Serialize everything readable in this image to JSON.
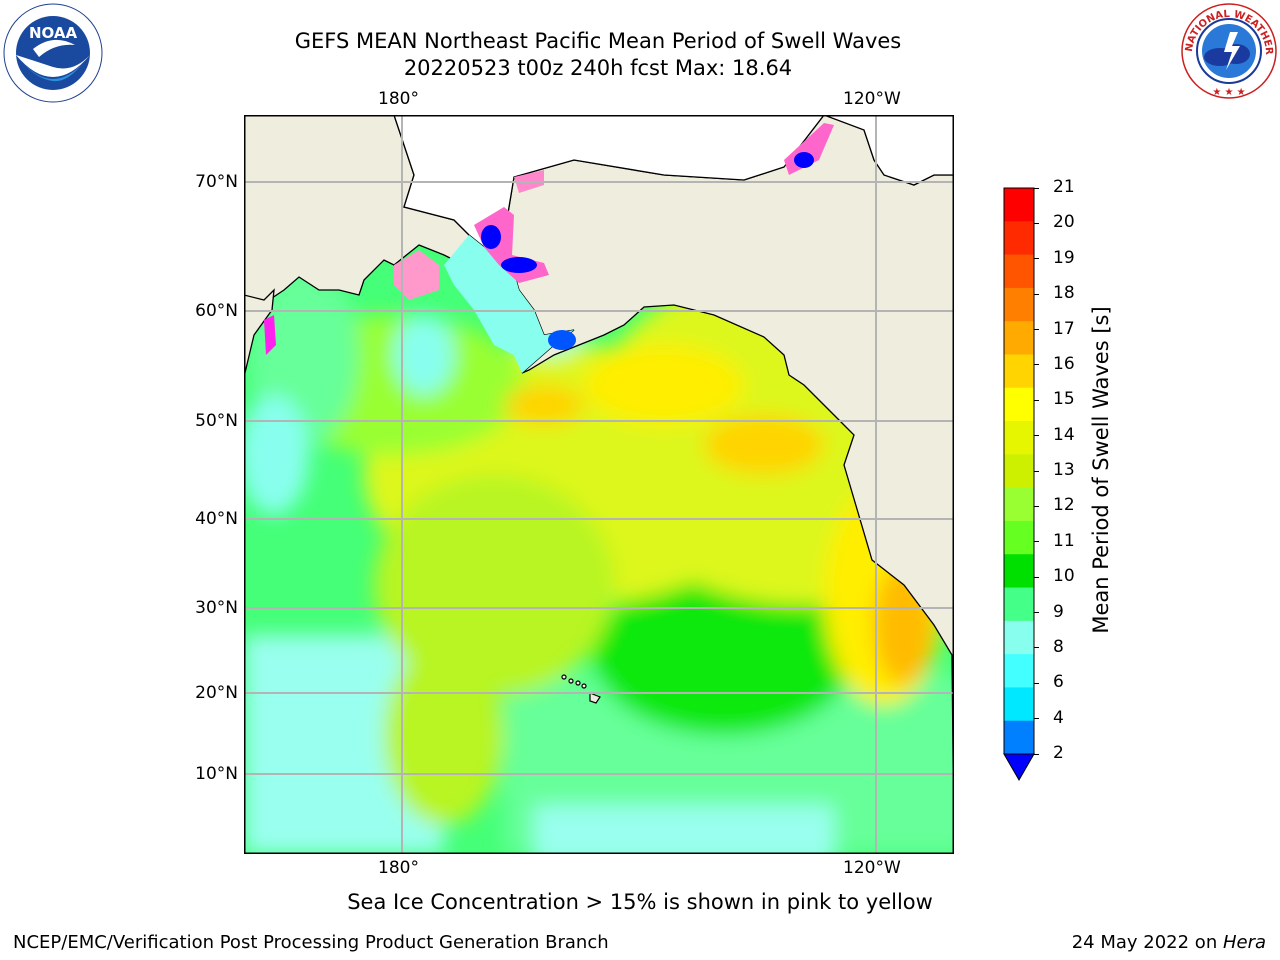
{
  "header": {
    "title_line1": "GEFS MEAN Northeast Pacific Mean Period of Swell Waves",
    "title_line2": "20220523 t00z 240h fcst   Max: 18.64"
  },
  "logos": {
    "left": {
      "name": "noaa-logo",
      "text": "NOAA"
    },
    "right": {
      "name": "nws-logo",
      "text": "NATIONAL WEATHER SERVICE"
    }
  },
  "map": {
    "lon_labels": [
      "180°",
      "120°W"
    ],
    "lat_labels": [
      "70°N",
      "60°N",
      "50°N",
      "40°N",
      "30°N",
      "20°N",
      "10°N"
    ],
    "colors": {
      "land": "#efeddd",
      "grid": "#b4b4b4",
      "frame": "#000000"
    }
  },
  "colorbar": {
    "label": "Mean Period of Swell Waves [s]",
    "ticks": [
      "21",
      "20",
      "19",
      "18",
      "17",
      "16",
      "15",
      "14",
      "13",
      "12",
      "11",
      "10",
      "9",
      "8",
      "6",
      "4",
      "2"
    ],
    "colors": [
      "#ff0000",
      "#ff2a00",
      "#ff5500",
      "#ff8000",
      "#ffaa00",
      "#ffd400",
      "#ffff00",
      "#e6f500",
      "#ccf000",
      "#99ff33",
      "#66ff22",
      "#00e000",
      "#44ff88",
      "#88ffee",
      "#44ffff",
      "#00e8ff",
      "#0080ff",
      "#0000ff"
    ]
  },
  "note": "Sea Ice Concentration > 15% is shown in pink to yellow",
  "footer": {
    "left": "NCEP/EMC/Verification Post Processing Product Generation Branch",
    "date": "24 May 2022 on ",
    "machine": "Hera"
  }
}
